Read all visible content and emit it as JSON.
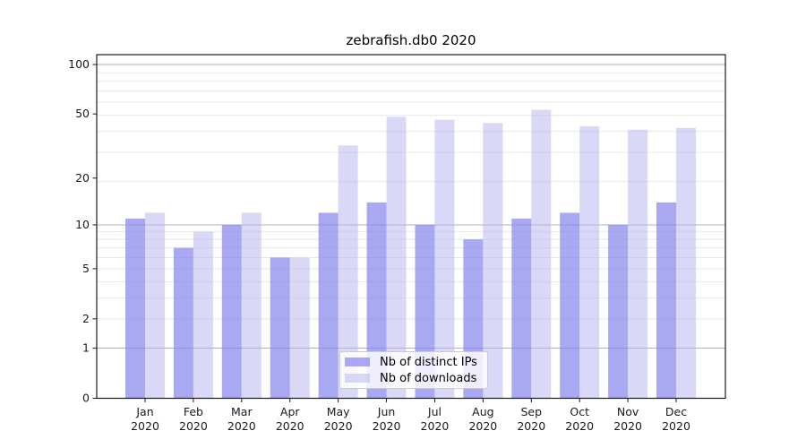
{
  "title": "zebrafish.db0 2020",
  "chart_data": {
    "type": "bar",
    "title": "zebrafish.db0 2020",
    "categories": [
      "Jan",
      "Feb",
      "Mar",
      "Apr",
      "May",
      "Jun",
      "Jul",
      "Aug",
      "Sep",
      "Oct",
      "Nov",
      "Dec"
    ],
    "category_year": "2020",
    "series": [
      {
        "name": "Nb of distinct IPs",
        "color": "#8888ee",
        "opacity": 0.72,
        "values": [
          11,
          7,
          10,
          6,
          12,
          14,
          10,
          8,
          11,
          12,
          10,
          14
        ]
      },
      {
        "name": "Nb of downloads",
        "color": "#b4b4f0",
        "opacity": 0.5,
        "values": [
          12,
          9,
          12,
          6,
          32,
          48,
          46,
          44,
          53,
          42,
          40,
          41
        ]
      }
    ],
    "xlabel": "",
    "ylabel": "",
    "yscale": "log10(value+1)",
    "yticks": [
      0,
      1,
      2,
      5,
      10,
      20,
      50,
      100
    ],
    "ylim": [
      0,
      114
    ],
    "grid": true,
    "major_gridlines_at": [
      1,
      10,
      100
    ],
    "legend_position": "lower center",
    "colors": {
      "major_grid": "#b0b0b0",
      "minor_grid": "#e8e8e8",
      "spine": "#1a1a1a",
      "tick_label": "#1a1a1a"
    }
  }
}
